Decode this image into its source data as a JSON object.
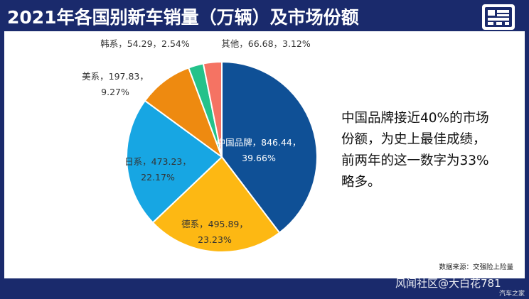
{
  "title": "2021年各国别新车销量（万辆）及市场份额",
  "side_text": [
    "中国品牌接近40%的市场",
    "份额，为史上最佳成绩，",
    "前两年的这一数字为33%",
    "略多。"
  ],
  "source": "数据来源：交强险上险量",
  "watermark": "风闻社区@大白花781",
  "watermark_small": "汽车之家",
  "colors": {
    "header_bg": "#1a2a6c",
    "panel_bg": "#ffffff"
  },
  "chart_data": {
    "type": "pie",
    "title": "2021年各国别新车销量（万辆）及市场份额",
    "slices": [
      {
        "name": "中国品牌",
        "value": 846.44,
        "percent": "39.66%",
        "color": "#0f5096",
        "label": [
          "中国品牌，846.44，",
          "39.66%"
        ]
      },
      {
        "name": "德系",
        "value": 495.89,
        "percent": "23.23%",
        "color": "#fdb813",
        "label": [
          "德系，495.89，",
          "23.23%"
        ]
      },
      {
        "name": "日系",
        "value": 473.23,
        "percent": "22.17%",
        "color": "#17a6e3",
        "label": [
          "日系，473.23，",
          "22.17%"
        ]
      },
      {
        "name": "美系",
        "value": 197.83,
        "percent": "9.27%",
        "color": "#ee8a10",
        "label": [
          "美系，197.83，",
          "9.27%"
        ]
      },
      {
        "name": "韩系",
        "value": 54.29,
        "percent": "2.54%",
        "color": "#24c28a",
        "label": [
          "韩系，54.29，2.54%"
        ]
      },
      {
        "name": "其他",
        "value": 66.68,
        "percent": "3.12%",
        "color": "#f57363",
        "label": [
          "其他，66.68，3.12%"
        ]
      }
    ]
  }
}
